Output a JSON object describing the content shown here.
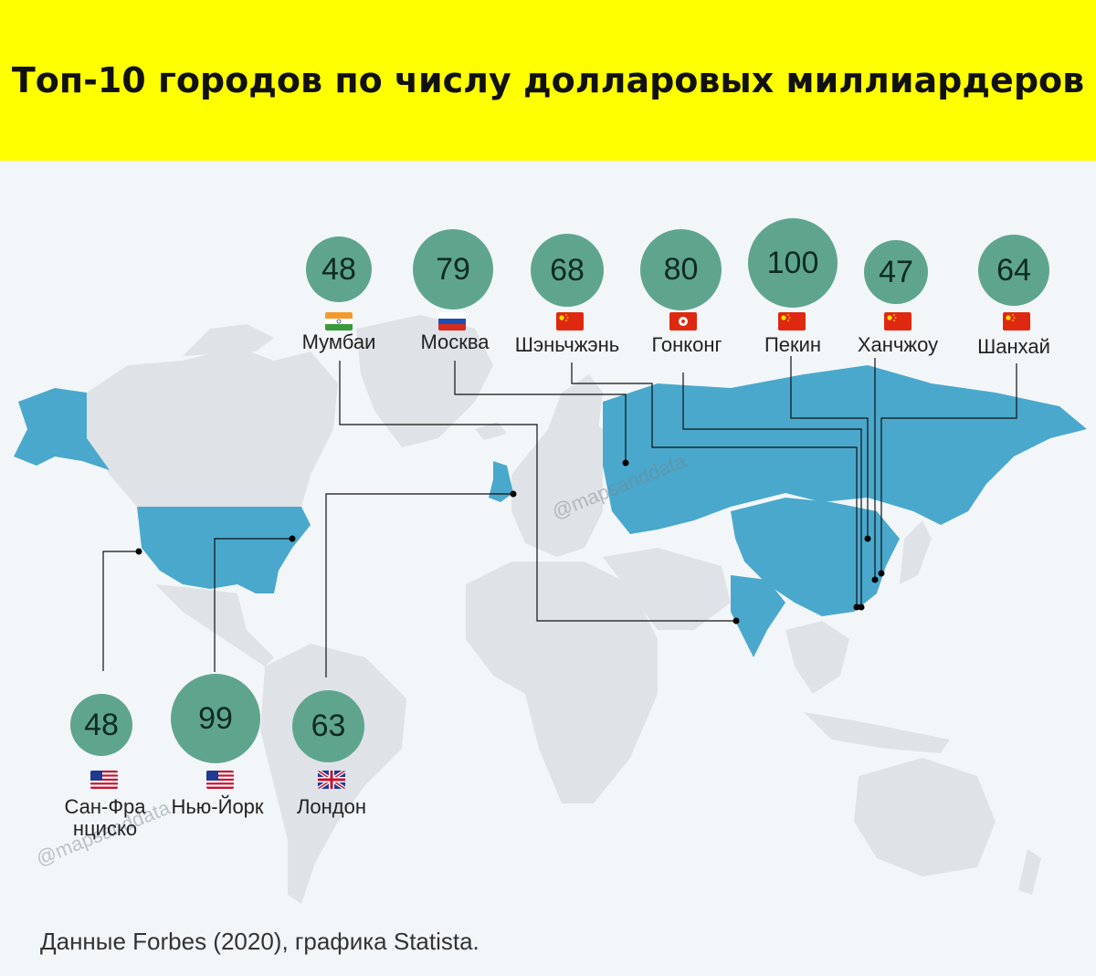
{
  "title": "Топ-10 городов по числу долларовых миллиардеров",
  "source": "Данные Forbes (2020), графика Statista.",
  "watermark": "@mapsanddata",
  "colors": {
    "header": "#ffff00",
    "circle": "#5fa58e",
    "highlight": "#4aa8cc",
    "land": "#dfe3e7",
    "background": "#f3f6f9"
  },
  "cities": [
    {
      "name": "Мумбаи",
      "value": "48",
      "flag": "india-flag-icon"
    },
    {
      "name": "Москва",
      "value": "79",
      "flag": "russia-flag-icon"
    },
    {
      "name": "Шэньчжэнь",
      "value": "68",
      "flag": "china-flag-icon"
    },
    {
      "name": "Гонконг",
      "value": "80",
      "flag": "hongkong-flag-icon"
    },
    {
      "name": "Пекин",
      "value": "100",
      "flag": "china-flag-icon"
    },
    {
      "name": "Ханчжоу",
      "value": "47",
      "flag": "china-flag-icon"
    },
    {
      "name": "Шанхай",
      "value": "64",
      "flag": "china-flag-icon"
    },
    {
      "name": "Сан-Франциско",
      "value": "48",
      "flag": "usa-flag-icon"
    },
    {
      "name": "Нью-Йорк",
      "value": "99",
      "flag": "usa-flag-icon"
    },
    {
      "name": "Лондон",
      "value": "63",
      "flag": "uk-flag-icon"
    }
  ]
}
